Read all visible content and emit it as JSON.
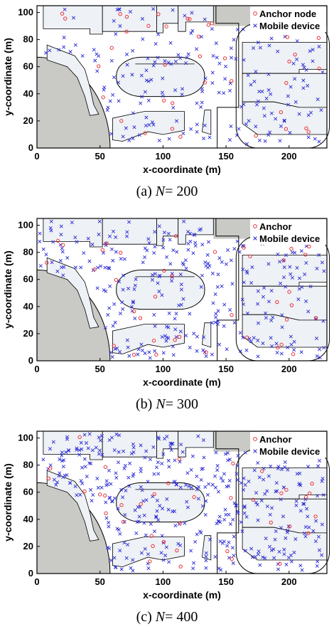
{
  "colors": {
    "anchor": "#e8343c",
    "mobile": "#2b2bd6",
    "obstacle": "#c9c9c5",
    "building": "#eef1f5",
    "outline": "#000000"
  },
  "chart_data": [
    {
      "type": "scatter",
      "caption_prefix": "(a)",
      "caption_var": "N",
      "caption_eq": "= 200",
      "xlabel": "x-coordinate (m)",
      "ylabel": "y-coordinate (m)",
      "xlim": [
        0,
        230
      ],
      "ylim": [
        0,
        105
      ],
      "xticks": [
        "0",
        "50",
        "100",
        "150",
        "200"
      ],
      "yticks": [
        "0",
        "20",
        "40",
        "60",
        "80",
        "100"
      ],
      "legend": {
        "placement": "top-right",
        "anchor_label": "Anchor node",
        "mobile_label": "Mobile device"
      },
      "anchor_count": 38,
      "mobile_count": 200,
      "seed": 11
    },
    {
      "type": "scatter",
      "caption_prefix": "(b)",
      "caption_var": "N",
      "caption_eq": "= 300",
      "xlabel": "x-coordinate (m)",
      "ylabel": "y-coordinate (m)",
      "xlim": [
        0,
        230
      ],
      "ylim": [
        0,
        105
      ],
      "xticks": [
        "0",
        "50",
        "100",
        "150",
        "200"
      ],
      "yticks": [
        "0",
        "20",
        "40",
        "60",
        "80",
        "100"
      ],
      "legend": {
        "placement": "top-right",
        "anchor_label": "Anchor",
        "mobile_label": "Mobile device"
      },
      "anchor_count": 38,
      "mobile_count": 300,
      "seed": 23
    },
    {
      "type": "scatter",
      "caption_prefix": "(c)",
      "caption_var": "N",
      "caption_eq": "= 400",
      "xlabel": "x-coordinate (m)",
      "ylabel": "y-coordinate (m)",
      "xlim": [
        0,
        230
      ],
      "ylim": [
        0,
        105
      ],
      "xticks": [
        "0",
        "50",
        "100",
        "150",
        "200"
      ],
      "yticks": [
        "0",
        "20",
        "40",
        "60",
        "80",
        "100"
      ],
      "legend": {
        "placement": "top-right",
        "anchor_label": "Anchor",
        "mobile_label": "Mobile device"
      },
      "anchor_count": 38,
      "mobile_count": 400,
      "seed": 37
    }
  ]
}
